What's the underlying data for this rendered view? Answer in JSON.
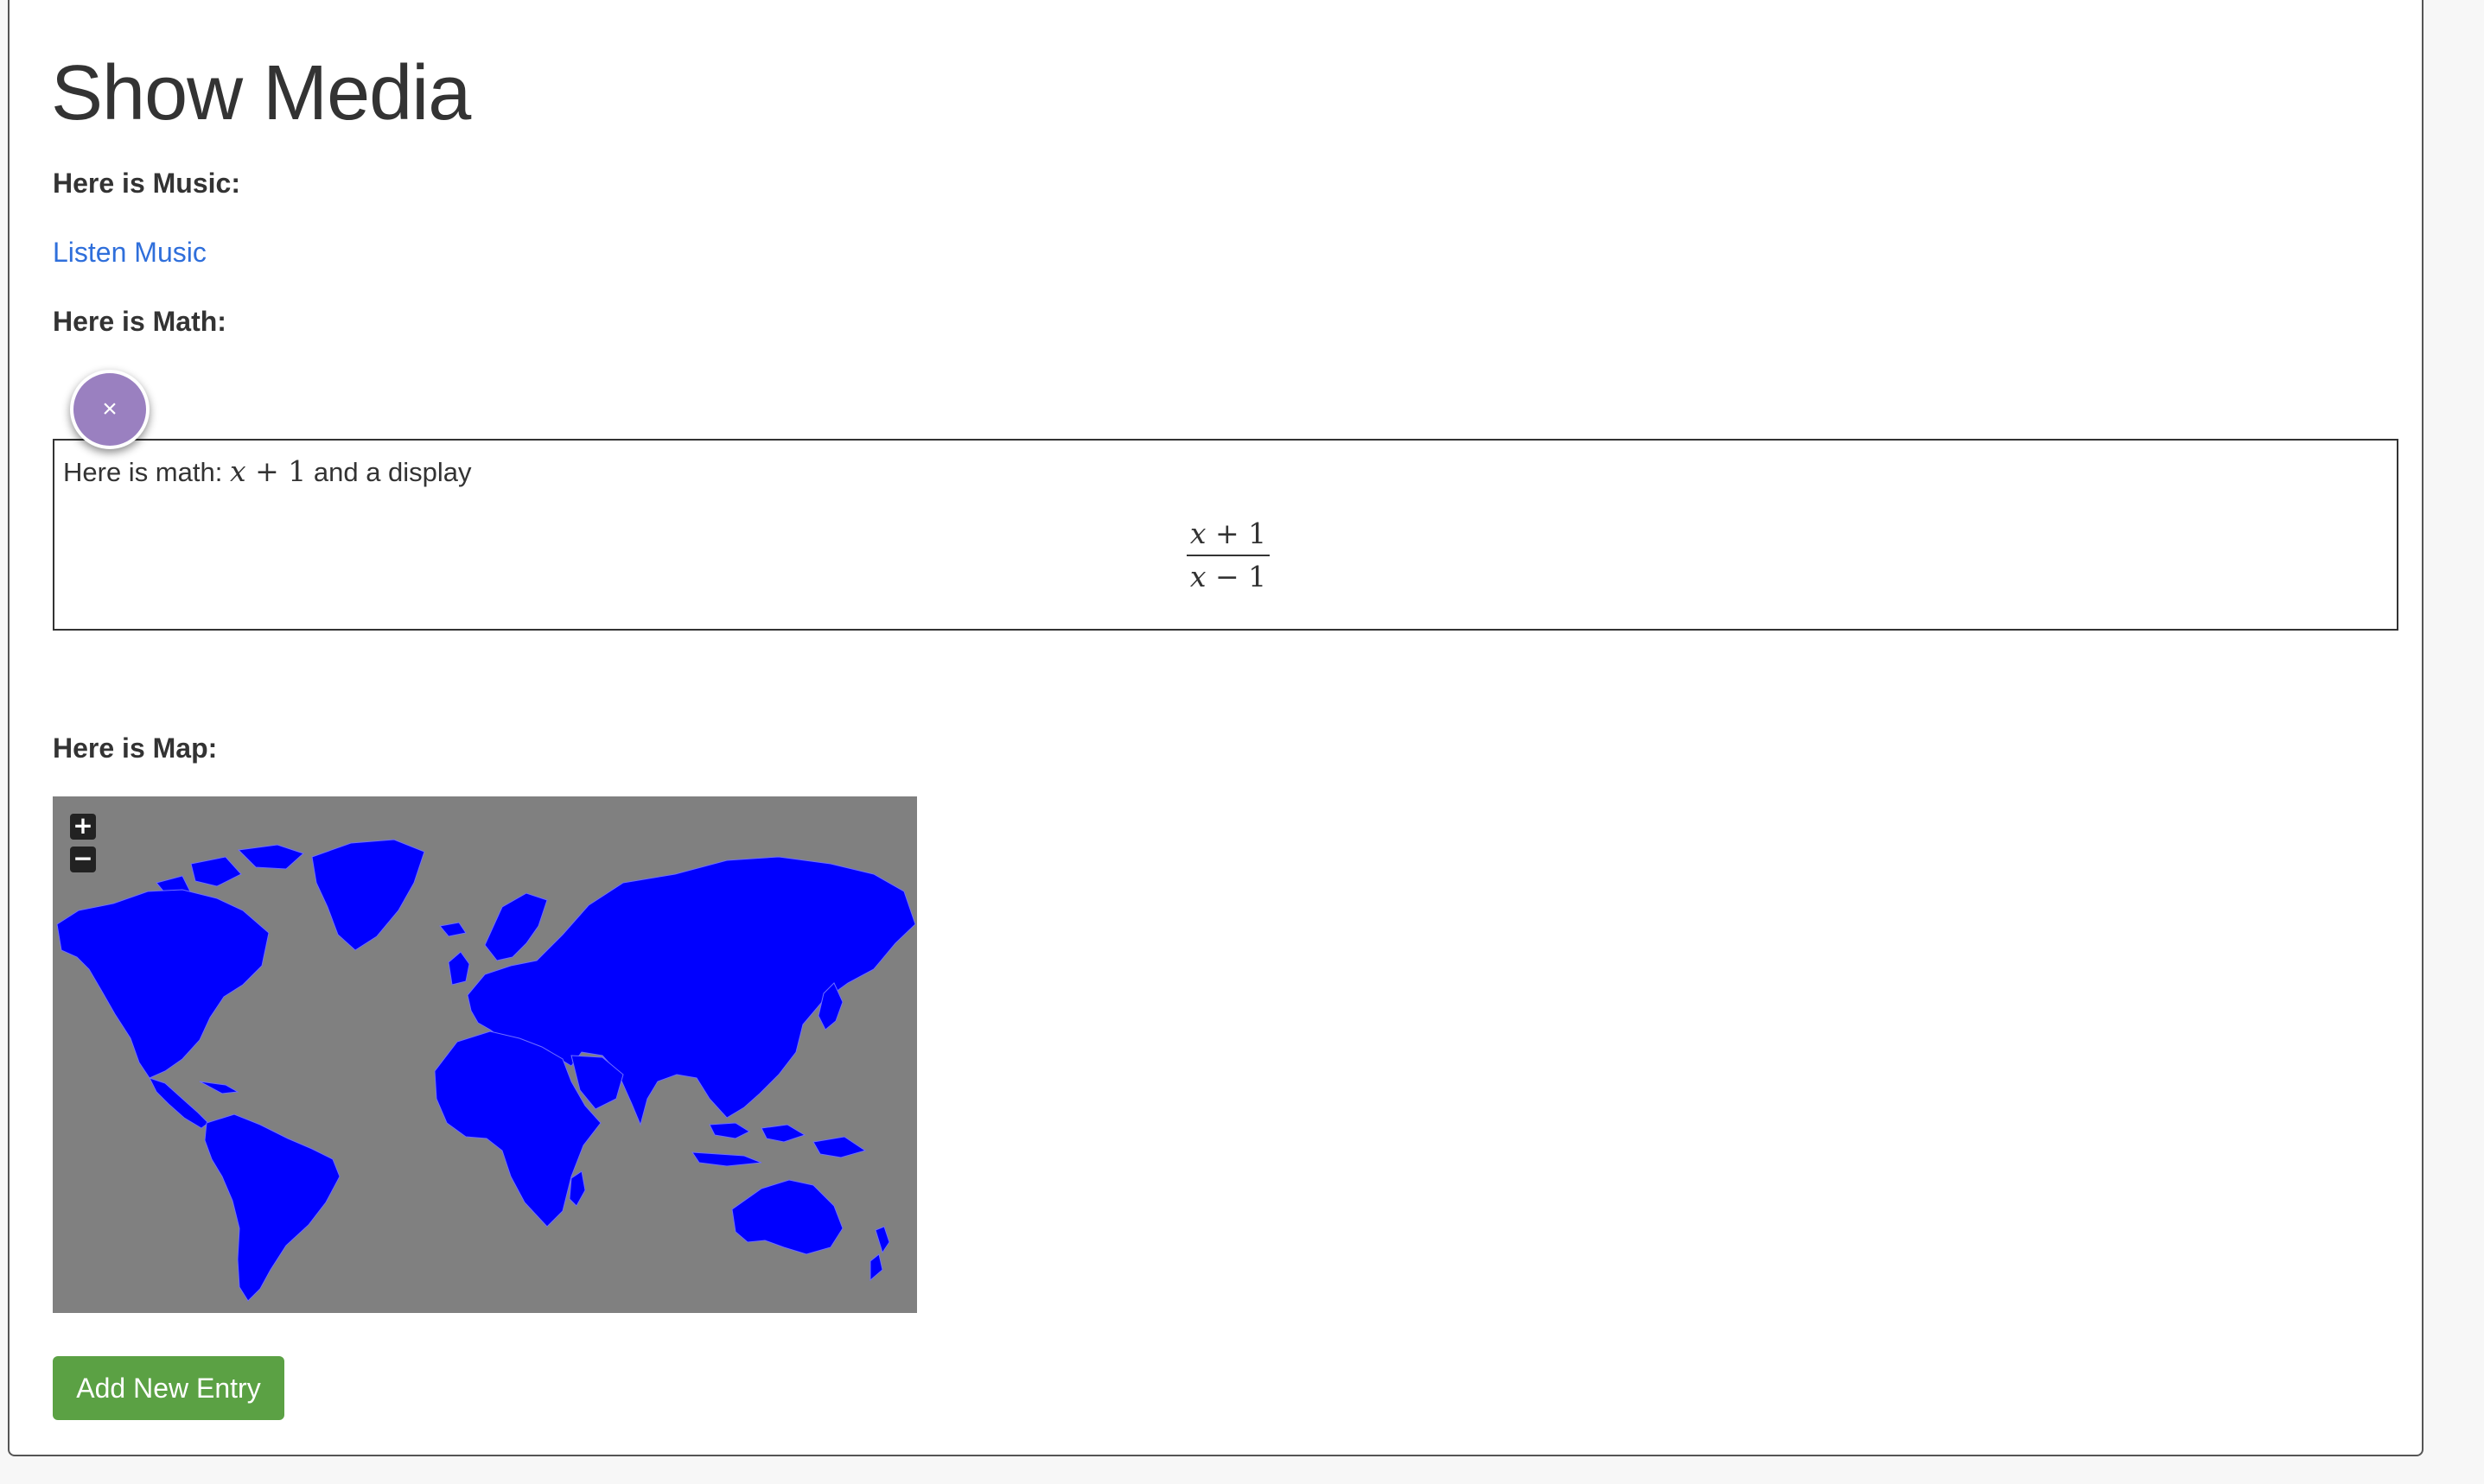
{
  "page": {
    "title": "Show Media",
    "music_label": "Here is Music:",
    "music_link": "Listen Music",
    "math_label": "Here is Math:",
    "map_label": "Here is Map:",
    "add_button": "Add New Entry"
  },
  "fab": {
    "icon": "close-icon",
    "glyph": "×"
  },
  "math": {
    "text_before": "Here is math:",
    "inline_var": "x",
    "inline_rest": "+ 1",
    "text_after": "and a display",
    "numerator_var": "x",
    "numerator_rest": "+ 1",
    "denominator_var": "x",
    "denominator_rest": "− 1"
  },
  "map": {
    "zoom_in": "+",
    "zoom_out": "−",
    "land_color": "#0000ff",
    "water_color": "#808080"
  }
}
